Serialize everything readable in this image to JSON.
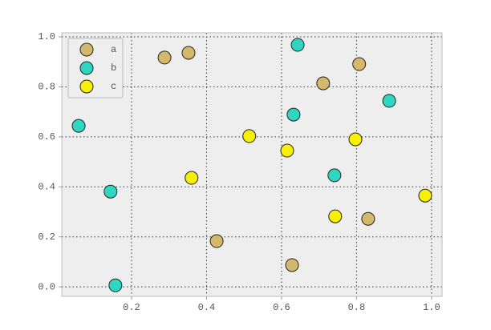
{
  "chart_data": {
    "type": "scatter",
    "series": [
      {
        "name": "a",
        "color": "#d4b96c",
        "x": [
          0.288,
          0.352,
          0.427,
          0.628,
          0.711,
          0.807,
          0.831
        ],
        "y": [
          0.917,
          0.936,
          0.183,
          0.087,
          0.814,
          0.891,
          0.272
        ]
      },
      {
        "name": "b",
        "color": "#2fd6c2",
        "x": [
          0.059,
          0.144,
          0.157,
          0.643,
          0.632,
          0.741,
          0.887
        ],
        "y": [
          0.644,
          0.381,
          0.006,
          0.968,
          0.689,
          0.446,
          0.744
        ]
      },
      {
        "name": "c",
        "color": "#f7f000",
        "x": [
          0.36,
          0.514,
          0.615,
          0.797,
          0.983,
          0.743
        ],
        "y": [
          0.436,
          0.603,
          0.545,
          0.59,
          0.365,
          0.282
        ]
      }
    ],
    "xlim": [
      0.014,
      1.028
    ],
    "ylim": [
      -0.038,
      1.016
    ],
    "xticks": [
      0.2,
      0.4,
      0.6,
      0.8,
      {
        "value": 1,
        "label": "1.0"
      }
    ],
    "yticks": [
      {
        "value": 0,
        "label": "0.0"
      },
      0.2,
      0.4,
      0.6,
      0.8,
      {
        "value": 1,
        "label": "1.0"
      }
    ],
    "grid": true,
    "legend": "upper-left"
  }
}
